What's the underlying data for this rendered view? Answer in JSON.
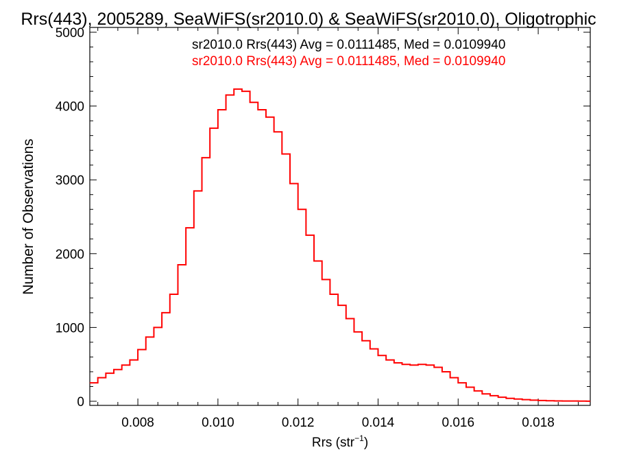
{
  "chart_data": {
    "type": "step-histogram",
    "title": "Rrs(443), 2005289, SeaWiFS(sr2010.0) & SeaWiFS(sr2010.0), Oligotrophic",
    "xlabel_main": "Rrs (str",
    "xlabel_sup": "−1",
    "xlabel_close": ")",
    "ylabel": "Number of Observations",
    "xlim": [
      0.0068,
      0.0193
    ],
    "ylim": [
      0,
      5000
    ],
    "x_ticks": [
      "0.008",
      "0.010",
      "0.012",
      "0.014",
      "0.016",
      "0.018"
    ],
    "x_tick_values": [
      0.008,
      0.01,
      0.012,
      0.014,
      0.016,
      0.018
    ],
    "y_ticks": [
      "0",
      "1000",
      "2000",
      "3000",
      "4000",
      "5000"
    ],
    "y_tick_values": [
      0,
      1000,
      2000,
      3000,
      4000,
      5000
    ],
    "annotations": [
      {
        "text": "sr2010.0 Rrs(443) Avg = 0.0111485, Med = 0.0109940",
        "color": "#000000"
      },
      {
        "text": "sr2010.0 Rrs(443) Avg = 0.0111485, Med = 0.0109940",
        "color": "#ff0000"
      }
    ],
    "series": [
      {
        "color": "#ff0000",
        "x": [
          0.0068,
          0.007,
          0.0072,
          0.0074,
          0.0076,
          0.0078,
          0.008,
          0.0082,
          0.0084,
          0.0086,
          0.0088,
          0.009,
          0.0092,
          0.0094,
          0.0096,
          0.0098,
          0.01,
          0.0102,
          0.0104,
          0.0106,
          0.0108,
          0.011,
          0.0112,
          0.0114,
          0.0116,
          0.0118,
          0.012,
          0.0122,
          0.0124,
          0.0126,
          0.0128,
          0.013,
          0.0132,
          0.0134,
          0.0136,
          0.0138,
          0.014,
          0.0142,
          0.0144,
          0.0146,
          0.0148,
          0.015,
          0.0152,
          0.0154,
          0.0156,
          0.0158,
          0.016,
          0.0162,
          0.0164,
          0.0166,
          0.0168,
          0.017,
          0.0172,
          0.0174,
          0.0176,
          0.0178,
          0.018,
          0.0182,
          0.0184,
          0.0186,
          0.0188,
          0.019,
          0.0192
        ],
        "y": [
          250,
          320,
          380,
          430,
          490,
          560,
          700,
          870,
          1000,
          1200,
          1450,
          1850,
          2350,
          2850,
          3300,
          3700,
          3950,
          4150,
          4230,
          4200,
          4050,
          3950,
          3850,
          3650,
          3350,
          2950,
          2600,
          2250,
          1900,
          1650,
          1450,
          1300,
          1120,
          940,
          820,
          710,
          620,
          560,
          520,
          500,
          490,
          500,
          490,
          460,
          400,
          320,
          250,
          190,
          140,
          100,
          75,
          55,
          40,
          30,
          22,
          15,
          10,
          7,
          5,
          4,
          3,
          2,
          1
        ]
      }
    ]
  }
}
